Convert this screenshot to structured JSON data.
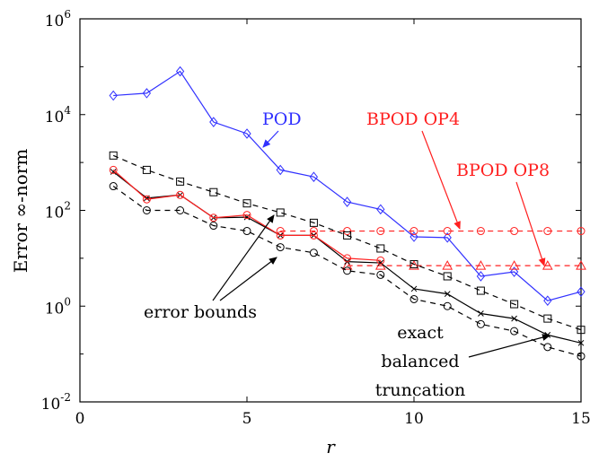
{
  "chart_data": {
    "type": "line",
    "title": "",
    "xlabel": "r",
    "ylabel": "Error ∞-norm",
    "xlim": [
      0,
      15
    ],
    "ylim": [
      0.01,
      1000000
    ],
    "yscale": "log",
    "grid": false,
    "xticks": [
      {
        "value": 0,
        "label": "0"
      },
      {
        "value": 5,
        "label": "5"
      },
      {
        "value": 10,
        "label": "10"
      },
      {
        "value": 15,
        "label": "15"
      }
    ],
    "yticks": [
      {
        "value": 0.01,
        "base": "10",
        "exp": "-2"
      },
      {
        "value": 1,
        "base": "10",
        "exp": "0"
      },
      {
        "value": 100,
        "base": "10",
        "exp": "2"
      },
      {
        "value": 10000,
        "base": "10",
        "exp": "4"
      },
      {
        "value": 1000000,
        "base": "10",
        "exp": "6"
      }
    ],
    "x": [
      1,
      2,
      3,
      4,
      5,
      6,
      7,
      8,
      9,
      10,
      11,
      12,
      13,
      14,
      15
    ],
    "series": [
      {
        "key": "pod",
        "color": "#3030ff",
        "dash": "none",
        "marker": "diamond",
        "values": [
          25000,
          28000,
          80000,
          7000,
          4000,
          700,
          500,
          150,
          105,
          28,
          27,
          4.2,
          5.2,
          1.3,
          2.0
        ]
      },
      {
        "key": "bpod_op4",
        "color": "#ff2020",
        "dash": "6,5",
        "marker": "circle",
        "values": [
          null,
          null,
          null,
          null,
          null,
          37,
          37,
          37,
          37,
          37,
          37,
          37,
          37,
          37,
          37
        ]
      },
      {
        "key": "bpod_op8",
        "color": "#ff2020",
        "dash": "6,5",
        "marker": "triangle",
        "values": [
          null,
          null,
          null,
          null,
          null,
          null,
          null,
          7,
          7,
          7,
          7,
          7,
          7,
          7,
          7
        ]
      },
      {
        "key": "upper_bound",
        "color": "#000000",
        "dash": "6,5",
        "marker": "square",
        "values": [
          1400,
          700,
          400,
          240,
          140,
          90,
          55,
          30,
          16,
          7.5,
          4.2,
          2.1,
          1.1,
          0.55,
          0.32
        ]
      },
      {
        "key": "exact_balanced",
        "color": "#000000",
        "dash": "none",
        "marker": "x",
        "values": [
          640,
          180,
          210,
          70,
          72,
          30,
          30,
          8.5,
          8.0,
          2.3,
          1.8,
          0.7,
          0.55,
          0.25,
          0.17
        ]
      },
      {
        "key": "bpod_red",
        "color": "#ff2020",
        "dash": "none",
        "marker": "circle",
        "values": [
          700,
          170,
          210,
          70,
          80,
          30,
          30,
          10,
          9,
          null,
          null,
          null,
          null,
          null,
          null
        ]
      },
      {
        "key": "lower_bound",
        "color": "#000000",
        "dash": "6,5",
        "marker": "circle",
        "values": [
          320,
          100,
          100,
          48,
          37,
          17,
          13,
          5.5,
          4.5,
          1.4,
          1.0,
          0.42,
          0.3,
          0.14,
          0.09
        ]
      }
    ],
    "annotations": [
      {
        "text": "POD",
        "color": "#3030ff"
      },
      {
        "text": "BPOD OP4",
        "color": "#ff2020"
      },
      {
        "text": "BPOD OP8",
        "color": "#ff2020"
      },
      {
        "text": "error bounds",
        "color": "#000000"
      },
      {
        "text": "exact",
        "color": "#000000"
      },
      {
        "text": "balanced",
        "color": "#000000"
      },
      {
        "text": "truncation",
        "color": "#000000"
      }
    ]
  }
}
